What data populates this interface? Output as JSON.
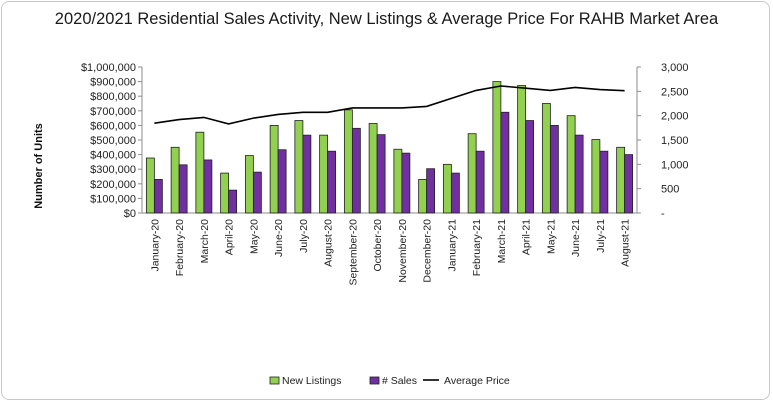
{
  "chart_data": {
    "type": "bar",
    "title": "2020/2021 Residential Sales Activity, New Listings & Average Price For RAHB Market Area",
    "ylabel": "Number of Units",
    "categories": [
      "January-20",
      "February-20",
      "March-20",
      "April-20",
      "May-20",
      "June-20",
      "July-20",
      "August-20",
      "September-20",
      "October-20",
      "November-20",
      "December-20",
      "January-21",
      "February-21",
      "March-21",
      "April-21",
      "May-21",
      "June-21",
      "July-21",
      "August-21"
    ],
    "series": [
      {
        "name": "New Listings",
        "kind": "bar",
        "axis": "right",
        "color": "#92d050",
        "values": [
          1130,
          1350,
          1660,
          820,
          1180,
          1800,
          1900,
          1600,
          2120,
          1840,
          1310,
          690,
          1000,
          1630,
          2700,
          2620,
          2250,
          2000,
          1510,
          1350
        ]
      },
      {
        "name": "# Sales",
        "kind": "bar",
        "axis": "right",
        "color": "#7030a0",
        "values": [
          690,
          990,
          1090,
          470,
          840,
          1300,
          1600,
          1270,
          1740,
          1610,
          1230,
          910,
          820,
          1270,
          2070,
          1900,
          1800,
          1600,
          1270,
          1200
        ]
      },
      {
        "name": "Average Price",
        "kind": "line",
        "axis": "left",
        "color": "#000000",
        "values": [
          615000,
          640000,
          655000,
          610000,
          650000,
          675000,
          690000,
          690000,
          720000,
          720000,
          720000,
          730000,
          785000,
          840000,
          870000,
          855000,
          840000,
          860000,
          845000,
          838000
        ]
      }
    ],
    "left_axis": {
      "ylim": [
        0,
        1000000
      ],
      "ticks": [
        "$0",
        "$100,000",
        "$200,000",
        "$300,000",
        "$400,000",
        "$500,000",
        "$600,000",
        "$700,000",
        "$800,000",
        "$900,000",
        "$1,000,000"
      ]
    },
    "right_axis": {
      "ylim": [
        0,
        3000
      ],
      "ticks": [
        "-",
        "500",
        "1,000",
        "1,500",
        "2,000",
        "2,500",
        "3,000"
      ]
    },
    "grid": false,
    "legend_position": "bottom"
  }
}
